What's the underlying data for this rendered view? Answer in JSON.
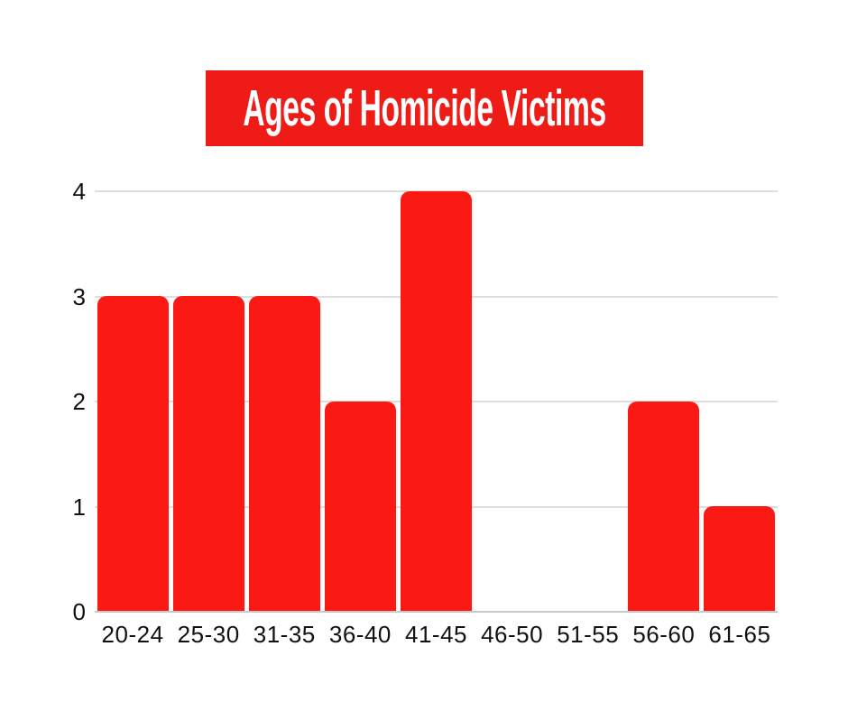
{
  "page": {
    "background": "#ffffff"
  },
  "title_banner": {
    "text": "Ages of Homicide Victims",
    "background": "#ee1b17",
    "text_color": "#ffffff"
  },
  "chart_data": {
    "type": "bar",
    "title": "Ages of Homicide Victims",
    "categories": [
      "20-24",
      "25-30",
      "31-35",
      "36-40",
      "41-45",
      "46-50",
      "51-55",
      "56-60",
      "61-65"
    ],
    "values": [
      3,
      3,
      3,
      2,
      4,
      0,
      0,
      2,
      1
    ],
    "xlabel": "",
    "ylabel": "",
    "ylim": [
      0,
      4
    ],
    "yticks": [
      0,
      1,
      2,
      3,
      4
    ],
    "grid": true,
    "legend": false,
    "bar_color": "#fb1a13",
    "gridline_color": "#dedede",
    "axis_line_color": "#c8c8c8",
    "tick_label_color": "#111111"
  }
}
